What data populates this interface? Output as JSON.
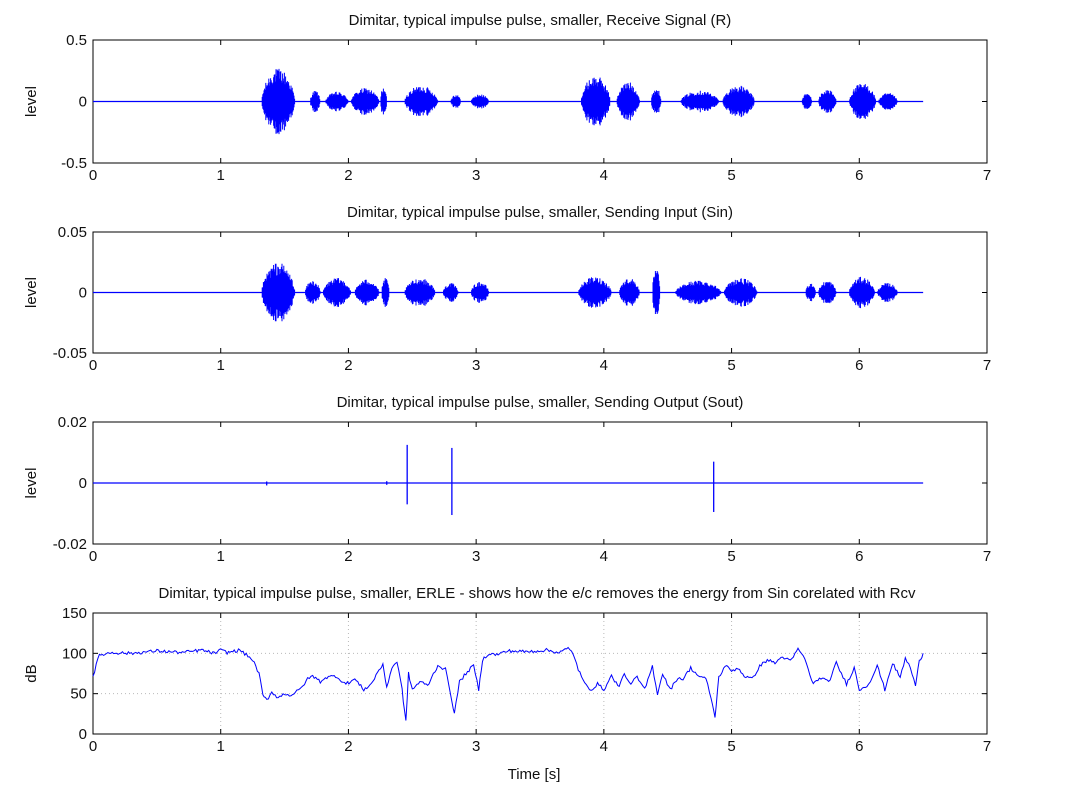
{
  "chart_data": [
    {
      "type": "line",
      "title": "Dimitar, typical impulse pulse, smaller, Receive Signal (R)",
      "xlabel": "",
      "ylabel": "level",
      "xlim": [
        0,
        7
      ],
      "ylim": [
        -0.5,
        0.5
      ],
      "xticks": [
        "0",
        "1",
        "2",
        "3",
        "4",
        "5",
        "6",
        "7"
      ],
      "yticks": [
        "-0.5",
        "0",
        "0.5"
      ],
      "grid": false,
      "series_color": "#0000ff",
      "series": [
        {
          "name": "",
          "kind": "speech_envelope",
          "x_range": [
            0,
            6.5
          ],
          "segments": [
            {
              "start": 1.32,
              "end": 1.58,
              "amp": 0.27
            },
            {
              "start": 1.7,
              "end": 1.78,
              "amp": 0.09
            },
            {
              "start": 1.82,
              "end": 2.0,
              "amp": 0.08
            },
            {
              "start": 2.02,
              "end": 2.24,
              "amp": 0.11
            },
            {
              "start": 2.25,
              "end": 2.3,
              "amp": 0.12
            },
            {
              "start": 2.44,
              "end": 2.7,
              "amp": 0.13
            },
            {
              "start": 2.8,
              "end": 2.88,
              "amp": 0.06
            },
            {
              "start": 2.96,
              "end": 3.1,
              "amp": 0.06
            },
            {
              "start": 3.82,
              "end": 4.05,
              "amp": 0.21
            },
            {
              "start": 4.1,
              "end": 4.28,
              "amp": 0.16
            },
            {
              "start": 4.37,
              "end": 4.45,
              "amp": 0.11
            },
            {
              "start": 4.6,
              "end": 4.9,
              "amp": 0.09
            },
            {
              "start": 4.93,
              "end": 5.18,
              "amp": 0.13
            },
            {
              "start": 5.55,
              "end": 5.63,
              "amp": 0.07
            },
            {
              "start": 5.68,
              "end": 5.82,
              "amp": 0.1
            },
            {
              "start": 5.92,
              "end": 6.13,
              "amp": 0.15
            },
            {
              "start": 6.15,
              "end": 6.3,
              "amp": 0.07
            }
          ]
        }
      ]
    },
    {
      "type": "line",
      "title": "Dimitar, typical impulse pulse, smaller, Sending Input (Sin)",
      "xlabel": "",
      "ylabel": "level",
      "xlim": [
        0,
        7
      ],
      "ylim": [
        -0.05,
        0.05
      ],
      "xticks": [
        "0",
        "1",
        "2",
        "3",
        "4",
        "5",
        "6",
        "7"
      ],
      "yticks": [
        "-0.05",
        "0",
        "0.05"
      ],
      "grid": false,
      "series_color": "#0000ff",
      "series": [
        {
          "name": "",
          "kind": "speech_envelope",
          "x_range": [
            0,
            6.5
          ],
          "segments": [
            {
              "start": 1.32,
              "end": 1.58,
              "amp": 0.025
            },
            {
              "start": 1.66,
              "end": 1.78,
              "amp": 0.01
            },
            {
              "start": 1.8,
              "end": 2.02,
              "amp": 0.012
            },
            {
              "start": 2.05,
              "end": 2.24,
              "amp": 0.011
            },
            {
              "start": 2.26,
              "end": 2.32,
              "amp": 0.012
            },
            {
              "start": 2.44,
              "end": 2.68,
              "amp": 0.012
            },
            {
              "start": 2.74,
              "end": 2.86,
              "amp": 0.008
            },
            {
              "start": 2.96,
              "end": 3.1,
              "amp": 0.009
            },
            {
              "start": 3.8,
              "end": 4.06,
              "amp": 0.013
            },
            {
              "start": 4.12,
              "end": 4.28,
              "amp": 0.012
            },
            {
              "start": 4.38,
              "end": 4.44,
              "amp": 0.02
            },
            {
              "start": 4.56,
              "end": 4.92,
              "amp": 0.01
            },
            {
              "start": 4.94,
              "end": 5.2,
              "amp": 0.012
            },
            {
              "start": 5.58,
              "end": 5.66,
              "amp": 0.008
            },
            {
              "start": 5.68,
              "end": 5.82,
              "amp": 0.01
            },
            {
              "start": 5.92,
              "end": 6.12,
              "amp": 0.013
            },
            {
              "start": 6.14,
              "end": 6.3,
              "amp": 0.008
            }
          ]
        }
      ]
    },
    {
      "type": "line",
      "title": "Dimitar, typical impulse pulse, smaller, Sending Output (Sout)",
      "xlabel": "",
      "ylabel": "level",
      "xlim": [
        0,
        7
      ],
      "ylim": [
        -0.02,
        0.02
      ],
      "xticks": [
        "0",
        "1",
        "2",
        "3",
        "4",
        "5",
        "6",
        "7"
      ],
      "yticks": [
        "-0.02",
        "0",
        "0.02"
      ],
      "grid": false,
      "series_color": "#0000ff",
      "series": [
        {
          "name": "",
          "kind": "impulses",
          "x_range": [
            0,
            6.5
          ],
          "impulses": [
            {
              "x": 2.46,
              "high": 0.0125,
              "low": -0.007
            },
            {
              "x": 2.81,
              "high": 0.0115,
              "low": -0.0105
            },
            {
              "x": 4.86,
              "high": 0.007,
              "low": -0.0095
            },
            {
              "x": 1.36,
              "high": 0.0005,
              "low": -0.0008
            },
            {
              "x": 2.3,
              "high": 0.0006,
              "low": -0.0006
            }
          ]
        }
      ]
    },
    {
      "type": "line",
      "title": "Dimitar, typical impulse pulse, smaller, ERLE - shows how the e/c removes the energy from Sin corelated with Rcv",
      "xlabel": "Time [s]",
      "ylabel": "dB",
      "xlim": [
        0,
        7
      ],
      "ylim": [
        0,
        150
      ],
      "xticks": [
        "0",
        "1",
        "2",
        "3",
        "4",
        "5",
        "6",
        "7"
      ],
      "yticks": [
        "0",
        "50",
        "100",
        "150"
      ],
      "grid": true,
      "series_color": "#0000ff",
      "series": [
        {
          "name": "",
          "kind": "line",
          "x": [
            0,
            0.05,
            0.15,
            0.3,
            0.5,
            0.7,
            0.85,
            0.95,
            1.0,
            1.05,
            1.15,
            1.2,
            1.25,
            1.3,
            1.33,
            1.36,
            1.4,
            1.45,
            1.5,
            1.55,
            1.62,
            1.68,
            1.72,
            1.78,
            1.82,
            1.9,
            1.98,
            2.05,
            2.12,
            2.18,
            2.24,
            2.27,
            2.3,
            2.34,
            2.38,
            2.42,
            2.45,
            2.47,
            2.5,
            2.56,
            2.62,
            2.7,
            2.76,
            2.8,
            2.83,
            2.87,
            2.92,
            2.98,
            3.02,
            3.05,
            3.1,
            3.15,
            3.25,
            3.4,
            3.55,
            3.65,
            3.72,
            3.76,
            3.8,
            3.85,
            3.9,
            3.95,
            4.0,
            4.06,
            4.12,
            4.16,
            4.2,
            4.26,
            4.32,
            4.38,
            4.42,
            4.46,
            4.52,
            4.58,
            4.62,
            4.68,
            4.74,
            4.8,
            4.84,
            4.87,
            4.9,
            4.95,
            5.0,
            5.05,
            5.1,
            5.16,
            5.22,
            5.28,
            5.34,
            5.4,
            5.46,
            5.52,
            5.56,
            5.6,
            5.64,
            5.7,
            5.76,
            5.82,
            5.86,
            5.9,
            5.96,
            6.0,
            6.06,
            6.1,
            6.14,
            6.2,
            6.26,
            6.32,
            6.36,
            6.4,
            6.44,
            6.47,
            6.5
          ],
          "y": [
            72,
            98,
            101,
            100,
            103,
            101,
            104,
            100,
            104,
            101,
            104,
            98,
            92,
            75,
            48,
            42,
            52,
            45,
            50,
            48,
            55,
            68,
            72,
            65,
            70,
            72,
            62,
            68,
            55,
            62,
            80,
            85,
            58,
            82,
            90,
            55,
            15,
            75,
            55,
            65,
            60,
            85,
            80,
            50,
            25,
            65,
            75,
            85,
            55,
            92,
            100,
            98,
            103,
            102,
            104,
            101,
            106,
            100,
            80,
            62,
            55,
            62,
            55,
            72,
            58,
            76,
            62,
            70,
            55,
            84,
            50,
            75,
            55,
            70,
            68,
            82,
            72,
            68,
            45,
            20,
            70,
            85,
            78,
            82,
            72,
            68,
            84,
            92,
            88,
            96,
            90,
            105,
            98,
            80,
            62,
            70,
            64,
            88,
            75,
            62,
            82,
            55,
            60,
            70,
            85,
            55,
            88,
            70,
            94,
            82,
            60,
            90,
            100
          ]
        }
      ]
    }
  ]
}
